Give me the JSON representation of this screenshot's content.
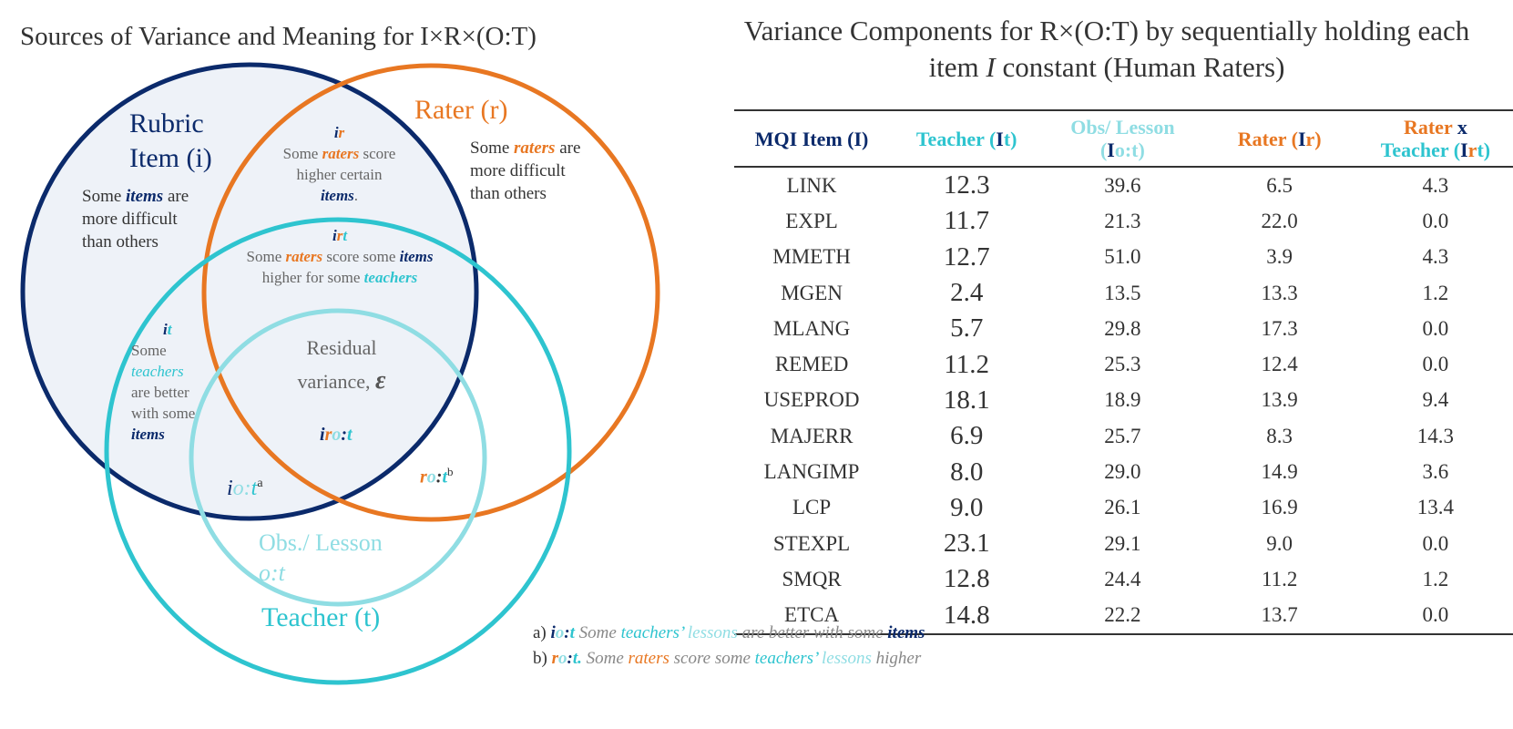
{
  "left_title": "Sources of Variance and Meaning for I×R×(O:T)",
  "right_title": "Variance Components for R×(O:T) by sequentially holding each item I constant (Human Raters)",
  "right_title_parts": {
    "before": "Variance Components for R×(O:T) by sequentially holding each item ",
    "italic": "I",
    "after": " constant (Human Raters)"
  },
  "colors": {
    "navy": "#0b2a6b",
    "orange": "#e87722",
    "teal": "#2ec4cf",
    "light_teal": "#8fdde3",
    "fill": "#eef2f8"
  },
  "venn": {
    "rubric": {
      "line1": "Rubric",
      "line2": "Item (i)",
      "desc_a": "Some ",
      "desc_items": "items",
      "desc_b": " are",
      "desc_l2": "more difficult",
      "desc_l3": "than others"
    },
    "rater": {
      "label": "Rater (r)",
      "desc_a": "Some ",
      "desc_raters": "raters",
      "desc_b": " are",
      "desc_l2": "more difficult",
      "desc_l3": "than others"
    },
    "ir": {
      "sym_i": "i",
      "sym_r": "r",
      "l1a": "Some ",
      "l1raters": "raters",
      "l1b": " score",
      "l2": "higher certain",
      "l3items": "items",
      "l3dot": "."
    },
    "irt": {
      "sym_i": "i",
      "sym_r": "r",
      "sym_t": "t",
      "l1a": "Some ",
      "l1raters": "raters",
      "l1b": " score some ",
      "l1items": "items",
      "l2a": "higher for some ",
      "l2teachers": "teachers"
    },
    "it": {
      "sym_i": "i",
      "sym_t": "t",
      "l1": "Some",
      "l2teachers": "teachers",
      "l3": "are better",
      "l4": "with some",
      "l5items": "items"
    },
    "residual": {
      "l1": "Residual",
      "l2": "variance, ",
      "epsilon": "ε"
    },
    "irot": {
      "i": "i",
      "r": "r",
      "o": "o",
      "colon": ":",
      "t": "t"
    },
    "iot": {
      "i": "i",
      "o": "o",
      "colon": ":",
      "t": "t",
      "sup": "a"
    },
    "rot": {
      "r": "r",
      "o": "o",
      "colon": ":",
      "t": "t",
      "sup": "b"
    },
    "obs": {
      "label": "Obs./ Lesson",
      "sym": "o:t"
    },
    "teacher": {
      "label": "Teacher (t)"
    }
  },
  "table": {
    "headers": {
      "item": "MQI Item (I)",
      "teacher_a": "Teacher (",
      "teacher_I": "I",
      "teacher_b": "t)",
      "obs_l1": "Obs/ Lesson",
      "obs_a": "(",
      "obs_I": "I",
      "obs_b": "o:t)",
      "rater_a": "Rater (",
      "rater_I": "I",
      "rater_b": "r)",
      "rxt_rater": "Rater",
      "rxt_x": " x",
      "rxt_teacher": "Teacher",
      "rxt_a": " (",
      "rxt_I": "I",
      "rxt_r": "r",
      "rxt_t": "t",
      "rxt_close": ")"
    },
    "rows": [
      {
        "item": "LINK",
        "teacher": "12.3",
        "obs": "39.6",
        "rater": "6.5",
        "rxt": "4.3"
      },
      {
        "item": "EXPL",
        "teacher": "11.7",
        "obs": "21.3",
        "rater": "22.0",
        "rxt": "0.0"
      },
      {
        "item": "MMETH",
        "teacher": "12.7",
        "obs": "51.0",
        "rater": "3.9",
        "rxt": "4.3"
      },
      {
        "item": "MGEN",
        "teacher": "2.4",
        "obs": "13.5",
        "rater": "13.3",
        "rxt": "1.2"
      },
      {
        "item": "MLANG",
        "teacher": "5.7",
        "obs": "29.8",
        "rater": "17.3",
        "rxt": "0.0"
      },
      {
        "item": "REMED",
        "teacher": "11.2",
        "obs": "25.3",
        "rater": "12.4",
        "rxt": "0.0"
      },
      {
        "item": "USEPROD",
        "teacher": "18.1",
        "obs": "18.9",
        "rater": "13.9",
        "rxt": "9.4"
      },
      {
        "item": "MAJERR",
        "teacher": "6.9",
        "obs": "25.7",
        "rater": "8.3",
        "rxt": "14.3"
      },
      {
        "item": "LANGIMP",
        "teacher": "8.0",
        "obs": "29.0",
        "rater": "14.9",
        "rxt": "3.6"
      },
      {
        "item": "LCP",
        "teacher": "9.0",
        "obs": "26.1",
        "rater": "16.9",
        "rxt": "13.4"
      },
      {
        "item": "STEXPL",
        "teacher": "23.1",
        "obs": "29.1",
        "rater": "9.0",
        "rxt": "0.0"
      },
      {
        "item": "SMQR",
        "teacher": "12.8",
        "obs": "24.4",
        "rater": "11.2",
        "rxt": "1.2"
      },
      {
        "item": "ETCA",
        "teacher": "14.8",
        "obs": "22.2",
        "rater": "13.7",
        "rxt": "0.0"
      }
    ]
  },
  "notes": {
    "a": {
      "label": "a) ",
      "i": "i",
      "o": "o",
      "c": ":",
      "t": "t",
      "s1": " Some ",
      "teachers": "teachers’",
      "s2": " ",
      "lessons": "lessons",
      "s3": " are better with some ",
      "items": "items"
    },
    "b": {
      "label": "b) ",
      "r": "r",
      "o": "o",
      "c": ":",
      "t": "t.",
      "s1": " Some ",
      "raters": "raters",
      "s2": " score some ",
      "teachers": "teachers’",
      "s3": " ",
      "lessons": "lessons",
      "s4": " higher"
    }
  }
}
